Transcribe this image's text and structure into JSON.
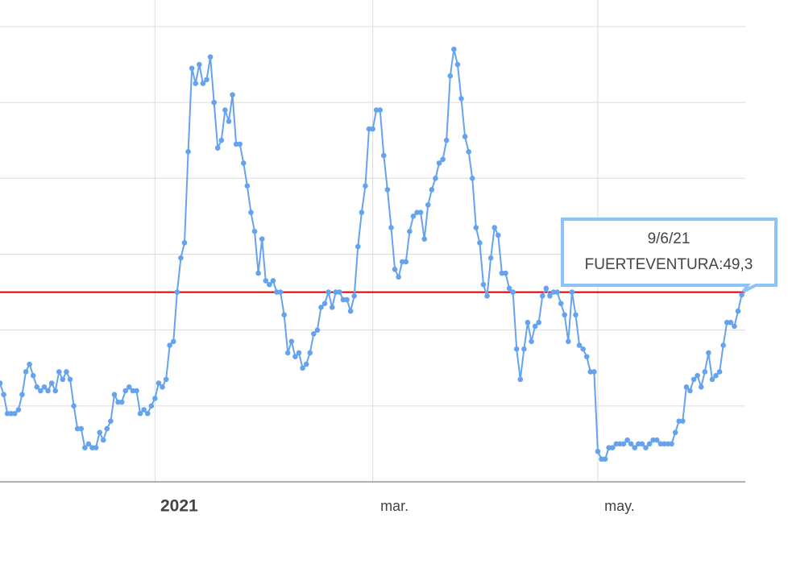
{
  "chart_data": {
    "type": "line",
    "x": [
      "20/11/20",
      "21/11/20",
      "22/11/20",
      "23/11/20",
      "24/11/20",
      "25/11/20",
      "26/11/20",
      "27/11/20",
      "28/11/20",
      "29/11/20",
      "30/11/20",
      "1/12/20",
      "2/12/20",
      "3/12/20",
      "4/12/20",
      "5/12/20",
      "6/12/20",
      "7/12/20",
      "8/12/20",
      "9/12/20",
      "10/12/20",
      "11/12/20",
      "12/12/20",
      "13/12/20",
      "14/12/20",
      "15/12/20",
      "16/12/20",
      "17/12/20",
      "18/12/20",
      "19/12/20",
      "20/12/20",
      "21/12/20",
      "22/12/20",
      "23/12/20",
      "24/12/20",
      "25/12/20",
      "26/12/20",
      "27/12/20",
      "28/12/20",
      "29/12/20",
      "30/12/20",
      "31/12/20",
      "1/1/21",
      "2/1/21",
      "3/1/21",
      "4/1/21",
      "5/1/21",
      "6/1/21",
      "7/1/21",
      "8/1/21",
      "9/1/21",
      "10/1/21",
      "11/1/21",
      "12/1/21",
      "13/1/21",
      "14/1/21",
      "15/1/21",
      "16/1/21",
      "17/1/21",
      "18/1/21",
      "19/1/21",
      "20/1/21",
      "21/1/21",
      "22/1/21",
      "23/1/21",
      "24/1/21",
      "25/1/21",
      "26/1/21",
      "27/1/21",
      "28/1/21",
      "29/1/21",
      "30/1/21",
      "31/1/21",
      "1/2/21",
      "2/2/21",
      "3/2/21",
      "4/2/21",
      "5/2/21",
      "6/2/21",
      "7/2/21",
      "8/2/21",
      "9/2/21",
      "10/2/21",
      "11/2/21",
      "12/2/21",
      "13/2/21",
      "14/2/21",
      "15/2/21",
      "16/2/21",
      "17/2/21",
      "18/2/21",
      "19/2/21",
      "20/2/21",
      "21/2/21",
      "22/2/21",
      "23/2/21",
      "24/2/21",
      "25/2/21",
      "26/2/21",
      "27/2/21",
      "28/2/21",
      "1/3/21",
      "2/3/21",
      "3/3/21",
      "4/3/21",
      "5/3/21",
      "6/3/21",
      "7/3/21",
      "8/3/21",
      "9/3/21",
      "10/3/21",
      "11/3/21",
      "12/3/21",
      "13/3/21",
      "14/3/21",
      "15/3/21",
      "16/3/21",
      "17/3/21",
      "18/3/21",
      "19/3/21",
      "20/3/21",
      "21/3/21",
      "22/3/21",
      "23/3/21",
      "24/3/21",
      "25/3/21",
      "26/3/21",
      "27/3/21",
      "28/3/21",
      "29/3/21",
      "30/3/21",
      "31/3/21",
      "1/4/21",
      "2/4/21",
      "3/4/21",
      "4/4/21",
      "5/4/21",
      "6/4/21",
      "7/4/21",
      "8/4/21",
      "9/4/21",
      "10/4/21",
      "11/4/21",
      "12/4/21",
      "13/4/21",
      "14/4/21",
      "15/4/21",
      "16/4/21",
      "17/4/21",
      "18/4/21",
      "19/4/21",
      "20/4/21",
      "21/4/21",
      "22/4/21",
      "23/4/21",
      "24/4/21",
      "25/4/21",
      "26/4/21",
      "27/4/21",
      "28/4/21",
      "29/4/21",
      "30/4/21",
      "1/5/21",
      "2/5/21",
      "3/5/21",
      "4/5/21",
      "5/5/21",
      "6/5/21",
      "7/5/21",
      "8/5/21",
      "9/5/21",
      "10/5/21",
      "11/5/21",
      "12/5/21",
      "13/5/21",
      "14/5/21",
      "15/5/21",
      "16/5/21",
      "17/5/21",
      "18/5/21",
      "19/5/21",
      "20/5/21",
      "21/5/21",
      "22/5/21",
      "23/5/21",
      "24/5/21",
      "25/5/21",
      "26/5/21",
      "27/5/21",
      "28/5/21",
      "29/5/21",
      "30/5/21",
      "31/5/21",
      "1/6/21",
      "2/6/21",
      "3/6/21",
      "4/6/21",
      "5/6/21",
      "6/6/21",
      "7/6/21",
      "8/6/21",
      "9/6/21"
    ],
    "series": [
      {
        "name": "FUERTEVENTURA",
        "color": "#66a3ee",
        "values": [
          26,
          23,
          18,
          18,
          18,
          19,
          23,
          29,
          31,
          28,
          25,
          24,
          25,
          24,
          26,
          24,
          29,
          27,
          29,
          27,
          20,
          14,
          14,
          9,
          10,
          9,
          9,
          13,
          11,
          14,
          16,
          23,
          21,
          21,
          24,
          25,
          24,
          24,
          18,
          19,
          18,
          20,
          22,
          26,
          25,
          27,
          36,
          37,
          50,
          59,
          63,
          87,
          109,
          105,
          110,
          105,
          106,
          112,
          100,
          88,
          90,
          98,
          95,
          102,
          89,
          89,
          84,
          78,
          71,
          66,
          55,
          64,
          53,
          52,
          53,
          50,
          50,
          44,
          34,
          37,
          33,
          34,
          30,
          31,
          34,
          39,
          40,
          46,
          47,
          50,
          46,
          50,
          50,
          48,
          48,
          45,
          49,
          62,
          71,
          78,
          93,
          93,
          98,
          98,
          86,
          77,
          67,
          56,
          54,
          58,
          58,
          66,
          70,
          71,
          71,
          64,
          73,
          77,
          80,
          84,
          85,
          90,
          107,
          114,
          110,
          101,
          91,
          87,
          80,
          67,
          63,
          52,
          49,
          59,
          67,
          65,
          55,
          55,
          51,
          50,
          35,
          27,
          35,
          42,
          37,
          41,
          42,
          49,
          51,
          49,
          50,
          50,
          47,
          44,
          37,
          50,
          44,
          36,
          35,
          33,
          29,
          29,
          8,
          6,
          6,
          9,
          9,
          10,
          10,
          10,
          11,
          10,
          9,
          10,
          10,
          9,
          10,
          11,
          11,
          10,
          10,
          10,
          10,
          13,
          16,
          16,
          25,
          24,
          27,
          28,
          25,
          29,
          34,
          27,
          28,
          29,
          36,
          42,
          42,
          41,
          45,
          49.3
        ]
      }
    ],
    "xticks": [
      {
        "value": "1/1/21",
        "label": "2021"
      },
      {
        "value": "1/3/21",
        "label": "mar."
      },
      {
        "value": "1/5/21",
        "label": "may."
      }
    ],
    "ylim": [
      0,
      127
    ],
    "ygrid": [
      20,
      40,
      60,
      80,
      100,
      120
    ],
    "grid": true,
    "threshold": {
      "value": 50,
      "color": "#d40000"
    },
    "tooltip": {
      "label": "FUERTEVENTURA:49,3"
    }
  }
}
